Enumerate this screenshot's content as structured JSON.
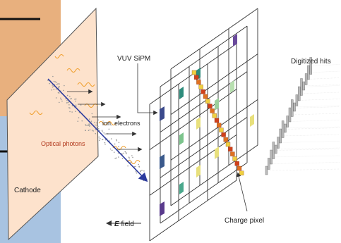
{
  "labels": {
    "vuv_sipm": "VUV SiPM",
    "digitized_hits": "Digitized hits",
    "ion_electrons": "ion. electrons",
    "optical_photons": "Optical photons",
    "cathode": "Cathode",
    "e_symbol": "E",
    "e_field": "field",
    "charge_pixel": "Charge pixel"
  }
}
